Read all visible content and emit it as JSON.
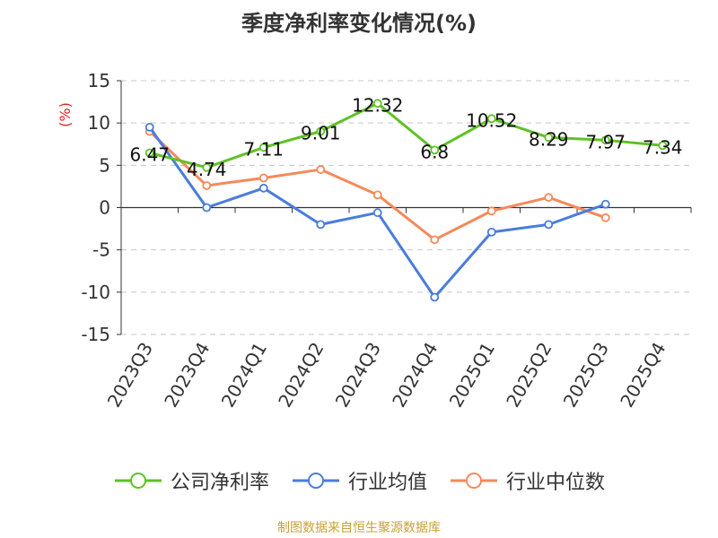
{
  "title": "季度净利率变化情况(%)",
  "source": "制图数据来自恒生聚源数据库",
  "source_color": "#c9a13a",
  "chart_data": {
    "type": "line",
    "title": "季度净利率变化情况(%)",
    "ylabel": "(%)",
    "ylabel_color": "#e01f1f",
    "ylim": [
      -15,
      15
    ],
    "yticks": [
      "15",
      "10",
      "5",
      "0",
      "-5",
      "-10",
      "-15"
    ],
    "grid": true,
    "legend_position": "bottom",
    "categories": [
      "2023Q3",
      "2023Q4",
      "2024Q1",
      "2024Q2",
      "2024Q3",
      "2024Q4",
      "2025Q1",
      "2025Q2",
      "2025Q3",
      "2025Q4"
    ],
    "series": [
      {
        "name": "公司净利率",
        "color": "#5ec225",
        "values": [
          6.47,
          4.74,
          7.11,
          9.01,
          12.32,
          6.8,
          10.52,
          8.29,
          7.97,
          7.34
        ],
        "labels": [
          "6.47",
          "4.74",
          "7.11",
          "9.01",
          "12.32",
          "6.8",
          "10.52",
          "8.29",
          "7.97",
          "7.34"
        ]
      },
      {
        "name": "行业均值",
        "color": "#4a7ddb",
        "values": [
          9.5,
          0.0,
          2.3,
          -2.0,
          -0.6,
          -10.6,
          -2.9,
          -2.0,
          0.4,
          null
        ]
      },
      {
        "name": "行业中位数",
        "color": "#f5895a",
        "values": [
          9.0,
          2.6,
          3.5,
          4.5,
          1.5,
          -3.8,
          -0.4,
          1.2,
          -1.2,
          null
        ]
      }
    ]
  }
}
